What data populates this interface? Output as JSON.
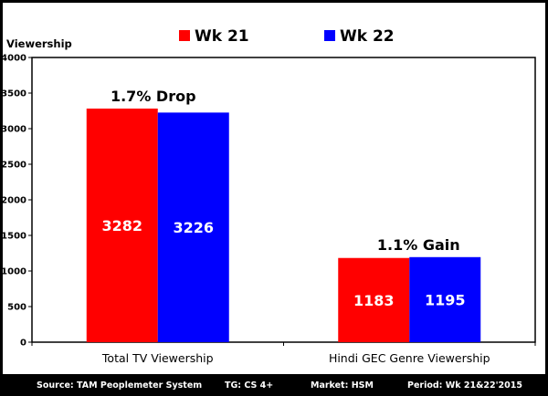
{
  "chart_data": {
    "type": "bar",
    "ylabel": "Viewership",
    "ylim": [
      0,
      4000
    ],
    "yticks": [
      0,
      500,
      1000,
      1500,
      2000,
      2500,
      3000,
      3500,
      4000
    ],
    "categories": [
      "Total TV Viewership",
      "Hindi GEC Genre Viewership"
    ],
    "series": [
      {
        "name": "Wk 21",
        "values": [
          3282,
          1183
        ],
        "color": "#ff0000"
      },
      {
        "name": "Wk 22",
        "values": [
          3226,
          1195
        ],
        "color": "#0000ff"
      }
    ],
    "annotations": [
      "1.7% Drop",
      "1.1% Gain"
    ],
    "legend": "top",
    "grid": false
  },
  "footer": {
    "source": "Source: TAM Peoplemeter System",
    "tg": "TG: CS 4+",
    "market": "Market: HSM",
    "period": "Period: Wk 21&22'2015"
  }
}
